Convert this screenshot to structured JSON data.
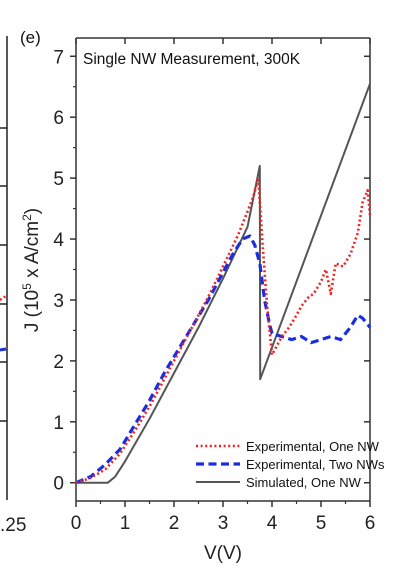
{
  "panel_label": "(e)",
  "left_panel_fragment": {
    "tick_label": ".25",
    "colors": {
      "dotted": "#ee2222",
      "dashed": "#1a2ee0"
    }
  },
  "chart_data": {
    "type": "line",
    "title": "Single NW Measurement, 300K",
    "xlabel": "V(V)",
    "ylabel": {
      "prefix": "J (10",
      "exp1": "5",
      "middle": " x A/cm",
      "exp2": "2",
      "suffix": ")"
    },
    "xlim": [
      0,
      6
    ],
    "ylim": [
      -0.3,
      7.3
    ],
    "x_ticks": [
      0,
      1,
      2,
      3,
      4,
      5,
      6
    ],
    "x_tick_labels": [
      "0",
      "1",
      "2",
      "3",
      "4",
      "5",
      "6"
    ],
    "y_ticks": [
      0,
      1,
      2,
      3,
      4,
      5,
      6,
      7
    ],
    "y_tick_labels": [
      "0",
      "1",
      "2",
      "3",
      "4",
      "5",
      "6",
      "7"
    ],
    "legend_position": "bottom-right",
    "series": [
      {
        "name": "Experimental, One NW",
        "color": "#ee2222",
        "style": "dotted",
        "x": [
          0,
          0.3,
          0.6,
          0.9,
          1.2,
          1.5,
          1.8,
          2.1,
          2.4,
          2.7,
          3.0,
          3.3,
          3.5,
          3.62,
          3.72,
          3.8,
          3.9,
          4.0,
          4.1,
          4.2,
          4.35,
          4.5,
          4.6,
          4.75,
          4.85,
          5.0,
          5.1,
          5.2,
          5.3,
          5.45,
          5.6,
          5.75,
          5.85,
          5.95,
          6.0
        ],
        "y": [
          0,
          0.08,
          0.22,
          0.48,
          0.85,
          1.25,
          1.7,
          2.15,
          2.6,
          3.05,
          3.55,
          4.05,
          4.45,
          4.7,
          5.0,
          4.0,
          2.9,
          2.1,
          2.25,
          2.4,
          2.55,
          2.75,
          2.9,
          3.05,
          3.1,
          3.3,
          3.5,
          3.1,
          3.6,
          3.55,
          3.75,
          4.1,
          4.6,
          4.8,
          4.4
        ]
      },
      {
        "name": "Experimental, Two NWs",
        "color": "#1a2ee0",
        "style": "dashed",
        "x": [
          0,
          0.3,
          0.6,
          0.9,
          1.2,
          1.5,
          1.8,
          2.1,
          2.4,
          2.7,
          3.0,
          3.2,
          3.4,
          3.55,
          3.65,
          3.75,
          3.85,
          3.95,
          4.0,
          4.2,
          4.4,
          4.6,
          4.8,
          5.0,
          5.2,
          5.4,
          5.6,
          5.75,
          5.85,
          6.0
        ],
        "y": [
          0,
          0.1,
          0.3,
          0.55,
          0.95,
          1.35,
          1.8,
          2.2,
          2.6,
          3.0,
          3.45,
          3.75,
          4.0,
          4.05,
          3.9,
          3.6,
          3.0,
          2.6,
          2.45,
          2.4,
          2.35,
          2.4,
          2.3,
          2.35,
          2.4,
          2.35,
          2.55,
          2.75,
          2.7,
          2.55
        ]
      },
      {
        "name": "Simulated, One NW",
        "color": "#555555",
        "style": "solid",
        "x": [
          0,
          0.65,
          0.8,
          1.0,
          1.5,
          2.0,
          2.5,
          3.0,
          3.5,
          3.75,
          3.76,
          6.0
        ],
        "y": [
          0,
          0,
          0.1,
          0.35,
          1.05,
          1.8,
          2.55,
          3.35,
          4.2,
          5.2,
          1.7,
          6.55
        ]
      }
    ]
  }
}
